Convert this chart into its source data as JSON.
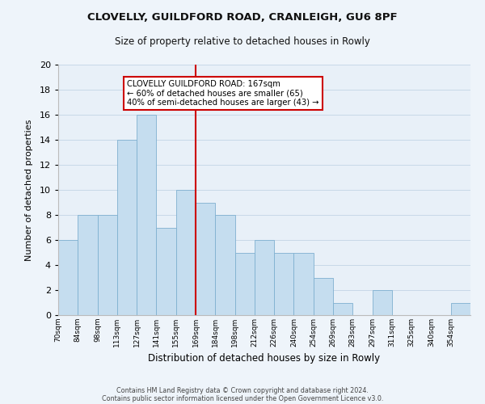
{
  "title": "CLOVELLY, GUILDFORD ROAD, CRANLEIGH, GU6 8PF",
  "subtitle": "Size of property relative to detached houses in Rowly",
  "xlabel": "Distribution of detached houses by size in Rowly",
  "ylabel": "Number of detached properties",
  "bin_labels": [
    "70sqm",
    "84sqm",
    "98sqm",
    "113sqm",
    "127sqm",
    "141sqm",
    "155sqm",
    "169sqm",
    "184sqm",
    "198sqm",
    "212sqm",
    "226sqm",
    "240sqm",
    "254sqm",
    "269sqm",
    "283sqm",
    "297sqm",
    "311sqm",
    "325sqm",
    "340sqm",
    "354sqm"
  ],
  "bar_heights": [
    6,
    8,
    8,
    14,
    16,
    7,
    10,
    9,
    8,
    5,
    6,
    5,
    5,
    3,
    1,
    0,
    2,
    0,
    0,
    0,
    1
  ],
  "bar_color": "#c5ddef",
  "bar_edge_color": "#7fb0d0",
  "vline_x_idx": 7,
  "vline_color": "#cc0000",
  "annotation_title": "CLOVELLY GUILDFORD ROAD: 167sqm",
  "annotation_line1": "← 60% of detached houses are smaller (65)",
  "annotation_line2": "40% of semi-detached houses are larger (43) →",
  "annotation_box_color": "#ffffff",
  "annotation_box_edge": "#cc0000",
  "ylim": [
    0,
    20
  ],
  "yticks": [
    0,
    2,
    4,
    6,
    8,
    10,
    12,
    14,
    16,
    18,
    20
  ],
  "grid_color": "#c8d8e8",
  "plot_bg_color": "#e8f0f8",
  "fig_bg_color": "#eef4fa",
  "footer1": "Contains HM Land Registry data © Crown copyright and database right 2024.",
  "footer2": "Contains public sector information licensed under the Open Government Licence v3.0."
}
